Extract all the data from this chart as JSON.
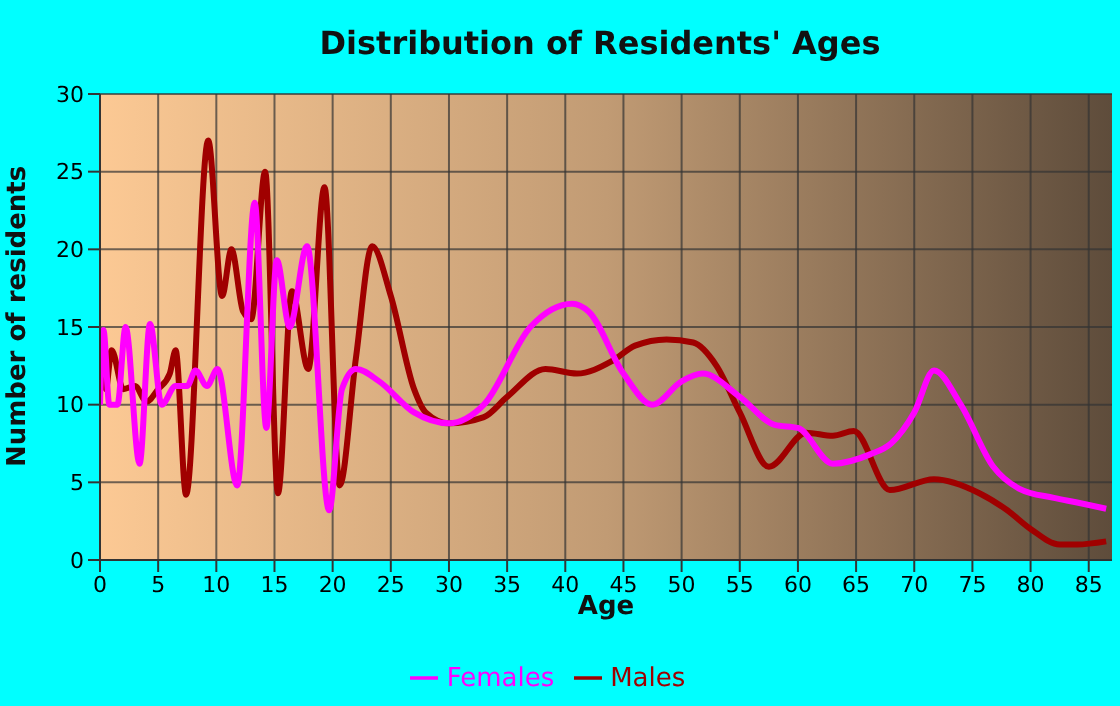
{
  "chart_data": {
    "type": "line",
    "title": "Distribution of Residents' Ages",
    "xlabel": "Age",
    "ylabel": "Number of residents",
    "xlim": [
      0,
      87
    ],
    "xticks": [
      0,
      5,
      10,
      15,
      20,
      25,
      30,
      35,
      40,
      45,
      50,
      55,
      60,
      65,
      70,
      75,
      80,
      85
    ],
    "ylim": [
      0,
      30
    ],
    "yticks": [
      0,
      5,
      10,
      15,
      20,
      25,
      30
    ],
    "grid": true,
    "legend": "bottom",
    "marker": "none",
    "line_style": "solid",
    "series": [
      {
        "name": "Males",
        "color": "#a00000",
        "x": [
          0,
          0.5,
          1,
          2,
          3,
          4,
          5,
          6,
          6.5,
          7.4,
          9.3,
          10.5,
          11.3,
          12.3,
          13,
          14.2,
          15.3,
          16.5,
          17.9,
          19.3,
          20.6,
          22,
          23.4,
          25,
          27,
          28,
          30,
          33,
          35,
          38.3,
          41,
          44,
          46,
          48.7,
          51,
          53,
          55,
          57.5,
          60.7,
          63,
          64.8,
          67.9,
          71.7,
          75.6,
          78,
          80,
          82.5,
          84,
          86.5
        ],
        "values": [
          14.3,
          11,
          13.5,
          11,
          11.2,
          10.2,
          11,
          12,
          13.5,
          4.2,
          27,
          17,
          20,
          16,
          15.5,
          25,
          4.3,
          17.3,
          12.3,
          24,
          4.8,
          13,
          20.2,
          17,
          11,
          9.5,
          8.8,
          9.2,
          10.5,
          12.3,
          12,
          12.8,
          13.8,
          14.2,
          14,
          12.5,
          9.5,
          6,
          8.2,
          8,
          8.3,
          4.5,
          5.2,
          4.3,
          3.2,
          2,
          1,
          1,
          1.2
        ]
      },
      {
        "name": "Females",
        "color": "#ff00ff",
        "x": [
          0,
          0.3,
          0.8,
          1.5,
          2.2,
          3.4,
          4.3,
          5.3,
          6.5,
          7.5,
          8.2,
          9.2,
          10.1,
          11.8,
          13.3,
          14.3,
          15.2,
          16.3,
          17.8,
          19.7,
          20.8,
          22,
          24,
          27,
          30,
          33,
          37,
          40.6,
          42,
          45,
          47.5,
          50,
          51.8,
          55,
          58,
          60,
          63,
          66.2,
          68,
          70,
          71.7,
          74,
          76.8,
          79,
          82,
          84,
          86.5
        ],
        "values": [
          10,
          14.8,
          10,
          10,
          15,
          6.2,
          15.2,
          10,
          11.2,
          11.2,
          12.2,
          11.2,
          12.3,
          4.8,
          23,
          8.5,
          19.3,
          15,
          20.2,
          3.2,
          11,
          12.3,
          11.5,
          9.5,
          8.8,
          10,
          15,
          16.5,
          16,
          12,
          10,
          11.5,
          12,
          10.5,
          8.7,
          8.5,
          6.2,
          6.8,
          7.5,
          9.5,
          12.2,
          10,
          6,
          4.6,
          4,
          3.7,
          3.3
        ]
      }
    ]
  }
}
